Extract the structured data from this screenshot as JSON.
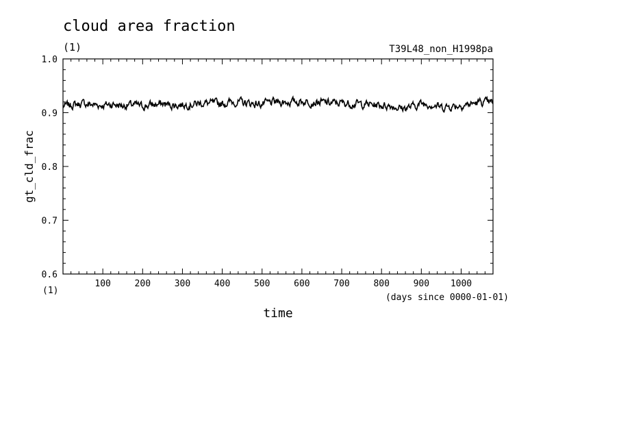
{
  "chart_data": {
    "type": "line",
    "title": "cloud area fraction",
    "units_label": "(1)",
    "run_label": "T39L48_non_H1998pa",
    "xlabel": "time",
    "x_units": "(days since 0000-01-01)",
    "ylabel": "gt_cld_frac",
    "y_units": "(1)",
    "xlim": [
      0,
      1080
    ],
    "ylim": [
      0.6,
      1.0
    ],
    "x_ticks": [
      100,
      200,
      300,
      400,
      500,
      600,
      700,
      800,
      900,
      1000
    ],
    "y_ticks": [
      "0.6",
      "0.7",
      "0.8",
      "0.9",
      "1.0"
    ],
    "grid": false,
    "series": [
      {
        "x": [
          0,
          25,
          50,
          75,
          100,
          125,
          150,
          175,
          200,
          225,
          250,
          275,
          300,
          325,
          350,
          375,
          400,
          425,
          450,
          475,
          500,
          525,
          550,
          575,
          600,
          625,
          650,
          675,
          700,
          725,
          750,
          775,
          800,
          825,
          850,
          875,
          900,
          925,
          950,
          975,
          1000,
          1025,
          1050,
          1075
        ],
        "values": [
          0.912,
          0.915,
          0.917,
          0.915,
          0.914,
          0.916,
          0.913,
          0.915,
          0.912,
          0.915,
          0.916,
          0.914,
          0.915,
          0.916,
          0.918,
          0.917,
          0.917,
          0.92,
          0.919,
          0.917,
          0.916,
          0.919,
          0.92,
          0.92,
          0.921,
          0.92,
          0.919,
          0.918,
          0.918,
          0.917,
          0.916,
          0.915,
          0.914,
          0.913,
          0.908,
          0.911,
          0.917,
          0.916,
          0.91,
          0.912,
          0.914,
          0.916,
          0.92,
          0.918
        ]
      }
    ]
  }
}
